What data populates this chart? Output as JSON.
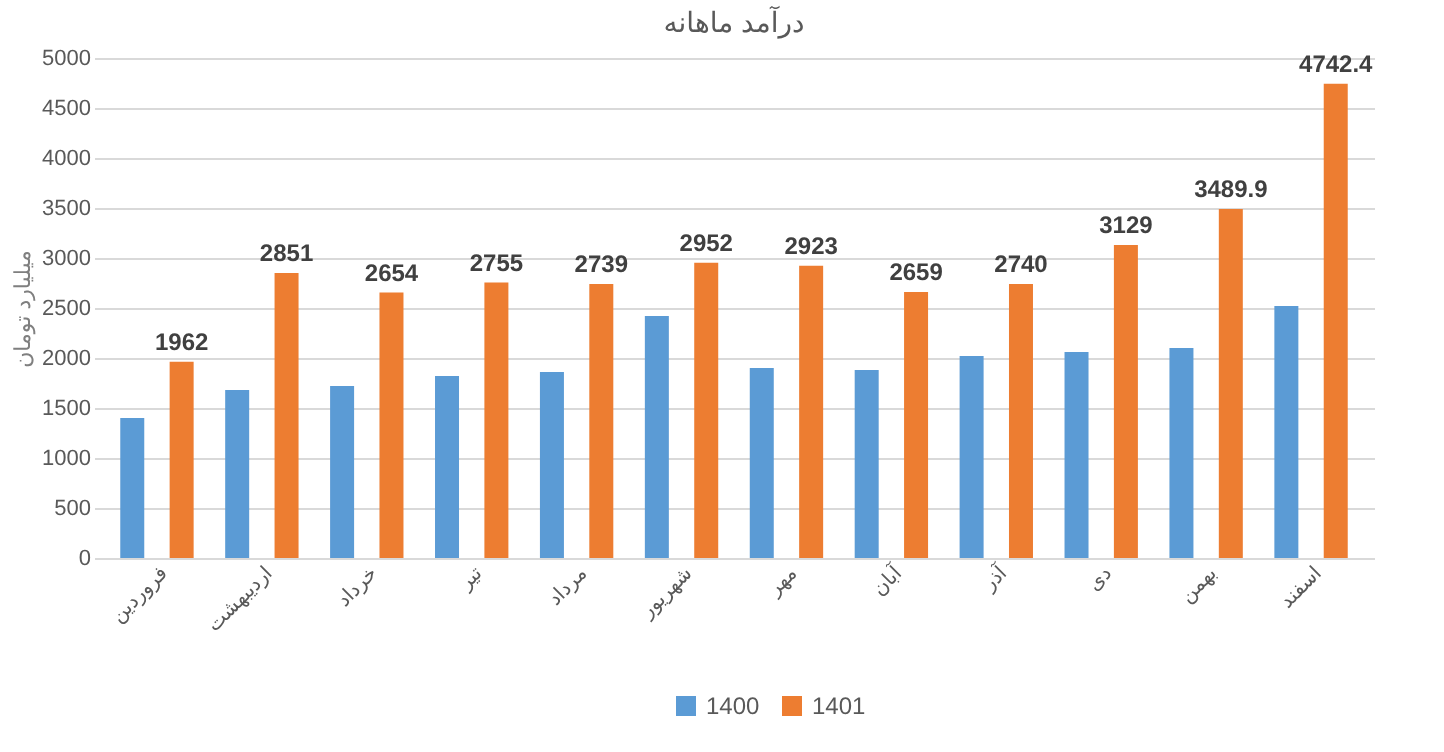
{
  "chart_data": {
    "type": "bar",
    "title": "درآمد ماهانه",
    "ylabel": "میلیارد تومان",
    "categories": [
      "فروردین",
      "اردیبهشت",
      "خرداد",
      "تیر",
      "مرداد",
      "شهریور",
      "مهر",
      "آبان",
      "آذر",
      "دی",
      "بهمن",
      "اسفند"
    ],
    "series": [
      {
        "name": "1400",
        "color": "#5b9bd5",
        "values": [
          1400,
          1680,
          1720,
          1820,
          1860,
          2420,
          1900,
          1880,
          2020,
          2060,
          2100,
          2520
        ]
      },
      {
        "name": "1401",
        "color": "#ed7d31",
        "values": [
          1962,
          2851,
          2654,
          2755,
          2739,
          2952,
          2923,
          2659,
          2740,
          3129,
          3489.9,
          4742.4
        ],
        "value_labels": [
          "1962",
          "2851",
          "2654",
          "2755",
          "2739",
          "2952",
          "2923",
          "2659",
          "2740",
          "3129",
          "3489.9",
          "4742.4"
        ]
      }
    ],
    "ylim": [
      0,
      5000
    ],
    "yticks": [
      0,
      500,
      1000,
      1500,
      2000,
      2500,
      3000,
      3500,
      4000,
      4500,
      5000
    ],
    "grid": "y",
    "legend": "bottom"
  }
}
